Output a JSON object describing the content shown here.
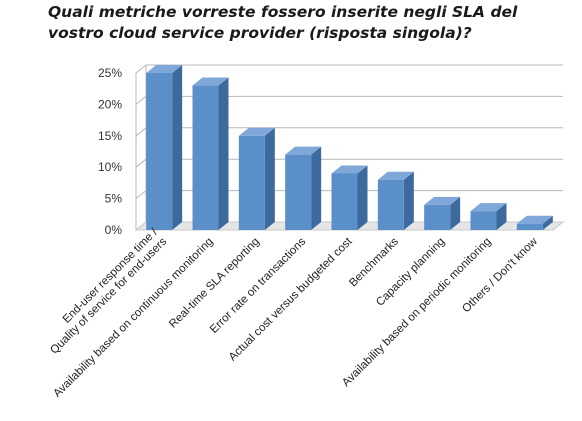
{
  "title": "Quali metriche vorreste fossero inserite negli SLA del vostro cloud service provider (risposta singola)?",
  "colors": {
    "bar_front": "#5b8fc9",
    "bar_side": "#3d6a9e",
    "bar_top": "#7fa8d8",
    "grid": "#b8b8b8",
    "floor": "#c8c8c8"
  },
  "chart_data": {
    "type": "bar",
    "three_d": true,
    "categories": [
      "End-user response time / Quality of service for end-users",
      "Availability based on continuous monitoring",
      "Real-time SLA reporting",
      "Error rate on transactions",
      "Actual cost versus budgeted cost",
      "Benchmarks",
      "Capacity planning",
      "Availability based on periodic monitoring",
      "Others / Don't know"
    ],
    "category_lines": [
      [
        "End-user response time /",
        "Quality of service for end-users"
      ],
      [
        "Availability based on continuous monitoring"
      ],
      [
        "Real-time SLA reporting"
      ],
      [
        "Error rate on transactions"
      ],
      [
        "Actual cost versus budgeted cost"
      ],
      [
        "Benchmarks"
      ],
      [
        "Capacity planning"
      ],
      [
        "Availability based on periodic monitoring"
      ],
      [
        "Others / Don't know"
      ]
    ],
    "values": [
      25,
      23,
      15,
      12,
      9,
      8,
      4,
      3,
      1
    ],
    "ylim": [
      0,
      25
    ],
    "yticks": [
      0,
      5,
      10,
      15,
      20,
      25
    ],
    "ytick_labels": [
      "0%",
      "5%",
      "10%",
      "15%",
      "20%",
      "25%"
    ],
    "ylabel": "",
    "xlabel": "",
    "grid": true,
    "legend": false
  }
}
